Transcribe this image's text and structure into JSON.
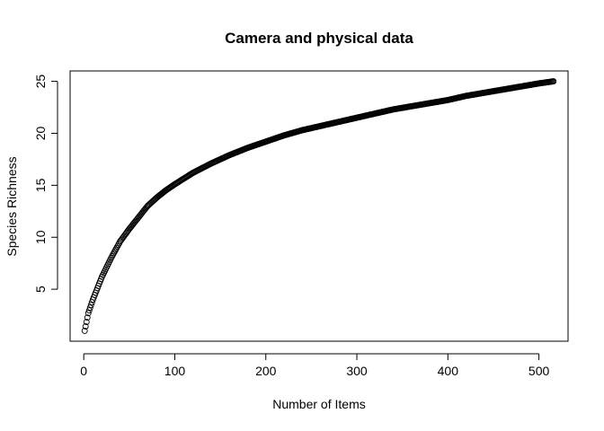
{
  "chart_data": {
    "type": "scatter",
    "title": "Camera and physical data",
    "xlabel": "Number of Items",
    "ylabel": "Species Richness",
    "xlim": [
      -15,
      532
    ],
    "ylim": [
      0,
      26
    ],
    "xticks": [
      0,
      100,
      200,
      300,
      400,
      500
    ],
    "yticks": [
      5,
      10,
      15,
      20,
      25
    ],
    "grid": false,
    "legend": "none",
    "marker": "open-circle",
    "marker_color": "#000000",
    "n_points": 516,
    "curve_samples": {
      "x": [
        1,
        5,
        10,
        20,
        30,
        40,
        50,
        60,
        70,
        80,
        90,
        100,
        120,
        140,
        160,
        180,
        200,
        220,
        240,
        260,
        280,
        300,
        320,
        340,
        360,
        380,
        400,
        420,
        440,
        460,
        480,
        500,
        516
      ],
      "y": [
        1.0,
        2.7,
        4.0,
        6.2,
        8.0,
        9.6,
        10.8,
        11.9,
        13.0,
        13.8,
        14.5,
        15.1,
        16.2,
        17.1,
        17.9,
        18.6,
        19.2,
        19.8,
        20.3,
        20.7,
        21.1,
        21.5,
        21.9,
        22.3,
        22.6,
        22.9,
        23.2,
        23.6,
        23.9,
        24.2,
        24.5,
        24.8,
        25.0
      ]
    }
  }
}
